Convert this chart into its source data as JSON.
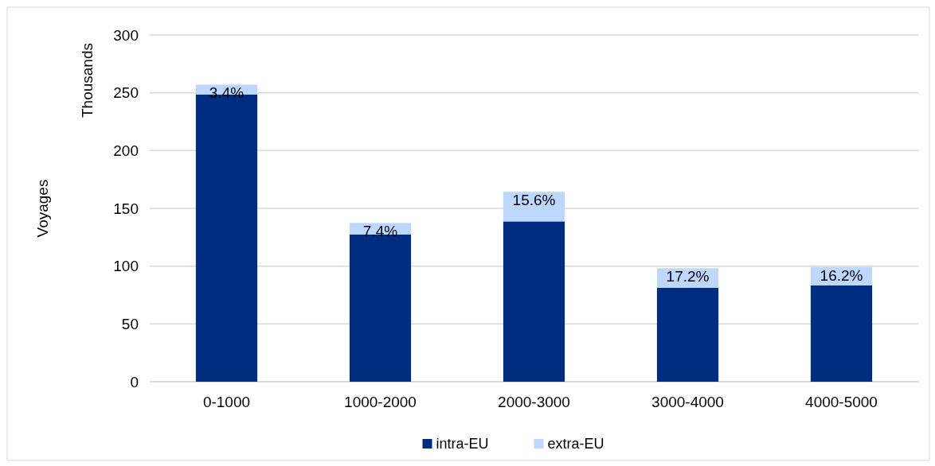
{
  "chart_data": {
    "type": "bar",
    "ylabel": "Voyages",
    "annotations": [
      "Thousands",
      {
        "text": "3.4%",
        "x": "0-1000",
        "y": 257
      },
      {
        "text": "7.4%",
        "x": "1000-2000",
        "y": 137.4
      },
      {
        "text": "15.6%",
        "x": "2000-3000",
        "y": 164.3
      },
      {
        "text": "17.2%",
        "x": "3000-4000",
        "y": 98.2
      },
      {
        "text": "16.2%",
        "x": "4000-5000",
        "y": 99.3
      }
    ],
    "categories": [
      "0-1000",
      "1000-2000",
      "2000-3000",
      "3000-4000",
      "4000-5000"
    ],
    "stacked": true,
    "series": [
      {
        "name": "intra-EU",
        "color": "#002d7f",
        "values": [
          248.4,
          127.4,
          138.7,
          81.2,
          83.3
        ]
      },
      {
        "name": "extra-EU",
        "color": "#bdd7ff",
        "values": [
          8.6,
          10,
          25.6,
          17,
          16
        ]
      }
    ],
    "ylim": [
      0,
      300
    ],
    "yticks": [
      0,
      50,
      100,
      150,
      200,
      250,
      300
    ],
    "grid": "y",
    "legend": "bottom"
  }
}
